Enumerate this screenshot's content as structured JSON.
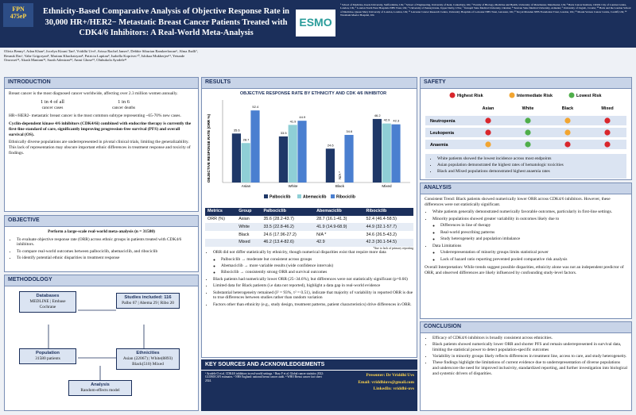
{
  "header": {
    "badge_top": "FPN",
    "badge_bottom": "475eP",
    "title": "Ethnicity-Based Comparative Analysis of Objective Response Rate in 30,000 HR+/HER2− Metastatic Breast Cancer Patients Treated with CDK4/6 Inhibitors: A Real-World Meta-Analysis",
    "logo": "ESMO",
    "affiliations": "¹ School of Medicine, Keele University, Staffordshire, UK; ² School of Engineering, University of Kent, Canterbury, UK; ³ Faculty of Biology, Medicine and Health, University of Manchester, Manchester, UK; ⁴ Barts Cancer Institute, CRUK City of London Centre, London, UK; ⁵ London North West Hospitals NHS Trust, UK; ⁶ University of Pennsylvania, Upper Darby, USA; ⁷ Ternopil State Medical University, Ukraine; ⁸ Yerevan State Medical University, Armenia; ⁹ University of Zagreb, Croatia; ¹⁰ Barts and the London School of Medicine, Queen Mary University of London, London, UK; ¹¹ Leicester Cancer Research Centre, University Hospitals of Leicester NHS Trust, Leicester, UK; ¹² Royal Marsden NHS Foundation Trust, London, UK; ¹³ Mount Vernon Cancer Centre, Cardiff, UK; ¹⁴ Wrexham Maelor Hospital, UK"
  },
  "authors": "Olivia Benny¹, Adan Khan², Jocelyn Kirani Tan³, Vriddhi Uvs⁴, Arissa Rachel James⁵, Debbie Siburian Ramkeelawan⁶, Alma Jballi⁷, Resnuk Dasᵃ, Vahe Grigoryan⁸, Mariam Khachatryan⁸, Patricia Lapitan⁹, Isabella Koprivec¹⁰, Ishikaa Mukherjee¹¹, Yetunde Onwosei¹², Akash Maniam¹³, Sarah Adeniran¹⁴, Anmi Ghose¹², Olubukola Ayodele¹¹",
  "introduction": {
    "heading": "INTRODUCTION",
    "lead": "Breast cancer is the most diagnosed cancer worldwide, affecting over 2.3 million women annually.",
    "stat1_big": "1 in 4 of all",
    "stat1_small": "cancer cases",
    "stat2_big": "1 in 6",
    "stat2_small": "cancer deaths",
    "p1": "HR+/HER2- metastatic breast cancer is the most common subtype representing ~65-70% new cases.",
    "p2": "Cyclin-dependent kinase 4/6 inhibitors (CDK4/6i) combined with endocrine therapy is currently the first-line standard of care, significantly improving progression-free survival (PFS) and overall survival (OS).",
    "p3": "Ethnically diverse populations are underrepresented in pivotal clinical trials, limiting the generalizability. This lack of representation may obscure important ethnic differences in treatment response and toxicity of findings."
  },
  "objective": {
    "heading": "OBJECTIVE",
    "lead": "Perform a large-scale real-world meta-analysis (n = 31580)",
    "bullets": [
      "To evaluate objective response rate (ORR) across ethnic groups in patients treated with CDK4/6 inhibitors.",
      "To compare real-world outcomes between palbociclib, abemaciclib, and ribociclib",
      "To identify potential ethnic disparities in treatment response"
    ]
  },
  "methodology": {
    "heading": "METHODOLOGY",
    "databases_title": "Databases",
    "databases": "MEDLINE | Embase Cochrane",
    "studies_title": "Studies included: 116",
    "studies": "Palbo 67 | Abema 29 | Ribo 20",
    "population_title": "Population",
    "population": "31580 patients",
    "ethnicities_title": "Ethnicities",
    "ethnicities": "Asian (22067) | White(8893) Black(510) Mixed",
    "analysis_title": "Analysis",
    "analysis": "Random-effects model"
  },
  "results": {
    "heading": "RESULTS",
    "table": {
      "header": [
        "Metrics",
        "Group",
        "Palbociclib",
        "Abemaciclib",
        "Ribociclib"
      ],
      "metric": "ORR (%)",
      "rows": [
        [
          "Asian",
          "35.6 (28.2-43.7)",
          "28.7 (16.1-41.3)",
          "52.4 (46.4-58.5)"
        ],
        [
          "White",
          "33.5 (22.8-46.2)",
          "41.9 (14.9-68.9)",
          "44.9 (32.1-57.7)"
        ],
        [
          "Black",
          "24.6 (17.96-27.2)",
          "N/A *",
          "34.6 (26.5-43.2)"
        ],
        [
          "Mixed",
          "46.2 (13.4-82.6)",
          "42.9",
          "42.3 (30.1-54.5)"
        ]
      ],
      "footnote": "*due to lack of primary reporting"
    },
    "bullets": [
      "ORR did not differ statistically by ethnicity, though numerical disparities exist that require more data"
    ],
    "sub_bullets": [
      "Palbociclib → moderate but consistent across groups",
      "Abemaciclib → more variable results (wide confidence intervals)",
      "Ribociclib → consistently strong ORR and survival outcomes"
    ],
    "bullets2": [
      "Black patients had numerically lower ORR (25–34.6%), but differences were not statistically significant (p=0.66)",
      "Limited data for Black patients (i.e data not reported), highlight a data gap in real-world evidence",
      "Substantial heterogeneity remained (I² = 93%, τ² = 0.51), indicate that majority of variability in reported ORR is due to true differences between studies rather than random variation",
      "Factors other than ethnicity (e.g., study design, treatment patterns, patient characteristics) drive differences in ORR."
    ]
  },
  "sources": {
    "heading": "KEY SOURCES AND ACKNOWLEDGEMENTS",
    "refs": "¹ Ayodele O et al. CDK4/6 inhibitors in real-world settings. ² Bray F et al. Global cancer statistics 2022: GLOBOCAN estimates. ³ NHS England: national breast cancer audit. ⁴ WHO Breast cancer fact sheet 2024.",
    "presenter": "Presenter: Dr Vriddhi Uvs",
    "email": "Email: vriddhiuvs@gmail.com",
    "linkedin": "LinkedIn: vriddhi-uvs"
  },
  "safety": {
    "heading": "SAFETY",
    "colors": {
      "high": "#d9262c",
      "intermediate": "#f2a531",
      "low": "#4fae4a"
    },
    "legend": [
      {
        "label": "Highest Risk",
        "level": "high"
      },
      {
        "label": "Intermediate Risk",
        "level": "intermediate"
      },
      {
        "label": "Lowest Risk",
        "level": "low"
      }
    ],
    "columns": [
      "Asian",
      "White",
      "Black",
      "Mixed"
    ],
    "rows": [
      {
        "label": "Neutropenia",
        "levels": [
          "high",
          "low",
          "intermediate",
          "high"
        ]
      },
      {
        "label": "Leukopenia",
        "levels": [
          "high",
          "low",
          "intermediate",
          "high"
        ]
      },
      {
        "label": "Anaemia",
        "levels": [
          "intermediate",
          "low",
          "high",
          "high"
        ]
      }
    ],
    "bullets": [
      "White patients showed the lowest incidence across most endpoints",
      "Asian population demonstrated the highest rates of hematologic toxicities",
      "Black and Mixed populations demonstrated highest anaemia rates"
    ]
  },
  "analysis": {
    "heading": "ANALYSIS",
    "lead": "Consistent Trend: Black patients showed numerically lower ORR across CDK4/6 inhibitors. However, these differences were not statistically significant.",
    "bullets": [
      "White patients generally demonstrated numerically favorable outcomes, particularly in first-line settings.",
      "Minority populations showed greater variability in outcomes likely due to"
    ],
    "sub_bullets": [
      "Differences in line of therapy",
      "Real-world prescribing patterns",
      "Study heterogeneity and population imbalance"
    ],
    "bullets2": [
      "Data Limitations"
    ],
    "sub_bullets2": [
      "Underrepresentation of minority groups limits statistical power",
      "Lack of hazard ratio reporting prevented pooled comparative risk analysis"
    ],
    "overall": "Overall Interpretation: While trends suggest possible disparities, ethnicity alone was not an independent predictor of ORR, and observed differences are likely influenced by confounding study-level factors."
  },
  "conclusion": {
    "heading": "CONCLUSION",
    "bullets": [
      "Efficacy of CDK4/6 inhibitors is broadly consistent across ethnicities.",
      "Black patients showed numerically lower ORR and shorter PFS and remain underrepresented in survival data, limiting the statistical power to detect population-specific outcomes",
      "Variability in minority groups likely reflects differences in treatment line, access to care, and study heterogeneity.",
      "These findings highlight the limitations of current evidence due to underrepresentation of diverse populations and underscore the need for improved inclusivity, standardized reporting, and further investigation into biological and systemic drivers of disparities."
    ]
  },
  "chart_data": {
    "type": "bar",
    "title": "OBJECTIVE RESPONSE RATE BY ETHNICITY AND CDK 4/6 INHIBITOR",
    "y_label": "OBJECTIVE RESPONSE RATE (ORR %)",
    "categories": [
      "Asian",
      "White",
      "Black",
      "Mixed"
    ],
    "series": [
      {
        "name": "Palbociclib",
        "color": "#1f3868",
        "values": [
          35.6,
          33.5,
          24.6,
          46.2
        ]
      },
      {
        "name": "Abemaciclib",
        "color": "#8fcfd6",
        "values": [
          28.7,
          41.9,
          null,
          42.9
        ]
      },
      {
        "name": "Ribociclib",
        "color": "#4a7fd0",
        "values": [
          52.4,
          44.9,
          34.6,
          42.3
        ]
      }
    ],
    "annotation": "N/A *",
    "ylim": [
      0,
      60
    ]
  }
}
